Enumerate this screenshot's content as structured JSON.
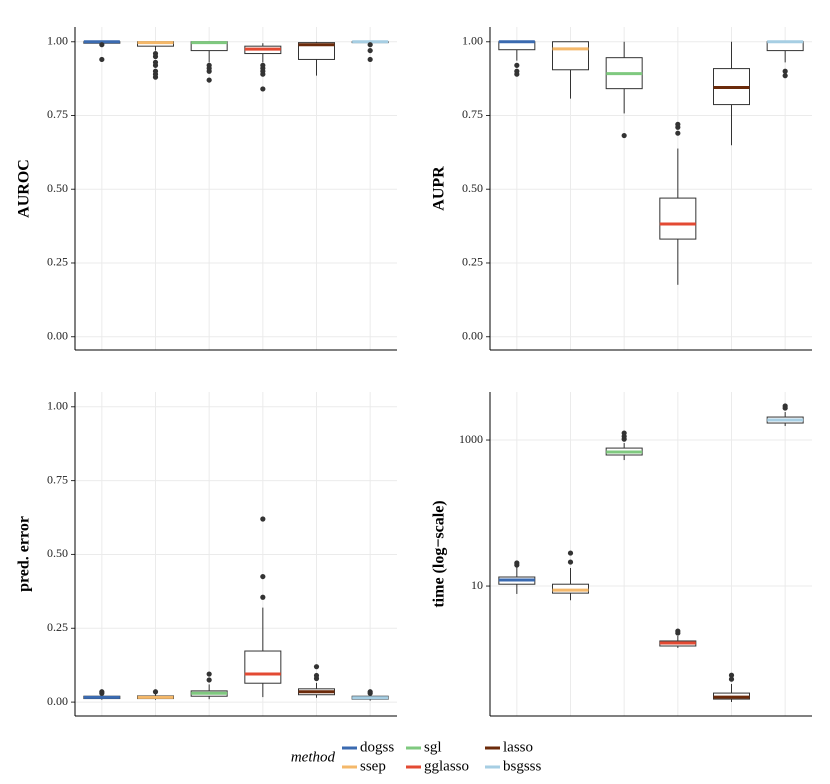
{
  "legend": {
    "title": "method",
    "items": [
      {
        "name": "dogss",
        "color": "#3a6ab0"
      },
      {
        "name": "ssep",
        "color": "#f4b86a"
      },
      {
        "name": "sgl",
        "color": "#7fc97f"
      },
      {
        "name": "gglasso",
        "color": "#e34a33"
      },
      {
        "name": "lasso",
        "color": "#6b2a0a"
      },
      {
        "name": "bsgsss",
        "color": "#a6cee3"
      }
    ]
  },
  "chart_data": [
    {
      "type": "box",
      "ylabel": "AUROC",
      "ylim": [
        -0.045,
        1.05
      ],
      "grid": true,
      "yticks": [
        {
          "value": 0,
          "label": "0.00"
        },
        {
          "value": 0.25,
          "label": "0.25"
        },
        {
          "value": 0.5,
          "label": "0.50"
        },
        {
          "value": 0.75,
          "label": "0.75"
        },
        {
          "value": 1,
          "label": "1.00"
        }
      ],
      "boxes": [
        {
          "whisker_low": 0.99,
          "q1": 0.995,
          "median": 1.0,
          "q3": 1.0,
          "whisker_high": 1.0,
          "outliers": [
            0.94,
            0.99
          ]
        },
        {
          "whisker_low": 0.97,
          "q1": 0.985,
          "median": 0.997,
          "q3": 1.0,
          "whisker_high": 1.0,
          "outliers": [
            0.88,
            0.89,
            0.9,
            0.92,
            0.93,
            0.95,
            0.96
          ]
        },
        {
          "whisker_low": 0.93,
          "q1": 0.97,
          "median": 0.997,
          "q3": 1.0,
          "whisker_high": 1.0,
          "outliers": [
            0.87,
            0.9,
            0.91,
            0.92
          ]
        },
        {
          "whisker_low": 0.93,
          "q1": 0.96,
          "median": 0.975,
          "q3": 0.985,
          "whisker_high": 0.995,
          "outliers": [
            0.84,
            0.89,
            0.9,
            0.91,
            0.92
          ]
        },
        {
          "whisker_low": 0.885,
          "q1": 0.94,
          "median": 0.99,
          "q3": 0.997,
          "whisker_high": 1.0,
          "outliers": []
        },
        {
          "whisker_low": 0.99,
          "q1": 0.997,
          "median": 1.0,
          "q3": 1.0,
          "whisker_high": 1.0,
          "outliers": [
            0.94,
            0.97,
            0.99
          ]
        }
      ]
    },
    {
      "type": "box",
      "ylabel": "AUPR",
      "ylim": [
        -0.045,
        1.05
      ],
      "grid": true,
      "yticks": [
        {
          "value": 0,
          "label": "0.00"
        },
        {
          "value": 0.25,
          "label": "0.25"
        },
        {
          "value": 0.5,
          "label": "0.50"
        },
        {
          "value": 0.75,
          "label": "0.75"
        },
        {
          "value": 1,
          "label": "1.00"
        }
      ],
      "boxes": [
        {
          "whisker_low": 0.936,
          "q1": 0.973,
          "median": 1.0,
          "q3": 1.0,
          "whisker_high": 1.0,
          "outliers": [
            0.92,
            0.9,
            0.89
          ]
        },
        {
          "whisker_low": 0.807,
          "q1": 0.905,
          "median": 0.976,
          "q3": 1.0,
          "whisker_high": 1.0,
          "outliers": []
        },
        {
          "whisker_low": 0.757,
          "q1": 0.841,
          "median": 0.892,
          "q3": 0.946,
          "whisker_high": 1.0,
          "outliers": [
            0.682
          ]
        },
        {
          "whisker_low": 0.176,
          "q1": 0.331,
          "median": 0.382,
          "q3": 0.47,
          "whisker_high": 0.638,
          "outliers": [
            0.69,
            0.71,
            0.72
          ]
        },
        {
          "whisker_low": 0.649,
          "q1": 0.787,
          "median": 0.845,
          "q3": 0.909,
          "whisker_high": 1.0,
          "outliers": []
        },
        {
          "whisker_low": 0.93,
          "q1": 0.97,
          "median": 1.0,
          "q3": 1.0,
          "whisker_high": 1.0,
          "outliers": [
            0.9,
            0.885
          ]
        }
      ]
    },
    {
      "type": "box",
      "ylabel": "pred. error",
      "ylim": [
        -0.047,
        1.05
      ],
      "grid": true,
      "yticks": [
        {
          "value": 0,
          "label": "0.00"
        },
        {
          "value": 0.25,
          "label": "0.25"
        },
        {
          "value": 0.5,
          "label": "0.50"
        },
        {
          "value": 0.75,
          "label": "0.75"
        },
        {
          "value": 1,
          "label": "1.00"
        }
      ],
      "boxes": [
        {
          "whisker_low": 0.008,
          "q1": 0.012,
          "median": 0.016,
          "q3": 0.02,
          "whisker_high": 0.026,
          "outliers": [
            0.03,
            0.035
          ]
        },
        {
          "whisker_low": 0.008,
          "q1": 0.012,
          "median": 0.016,
          "q3": 0.021,
          "whisker_high": 0.028,
          "outliers": [
            0.035
          ]
        },
        {
          "whisker_low": 0.01,
          "q1": 0.02,
          "median": 0.03,
          "q3": 0.038,
          "whisker_high": 0.06,
          "outliers": [
            0.075,
            0.095
          ]
        },
        {
          "whisker_low": 0.017,
          "q1": 0.064,
          "median": 0.095,
          "q3": 0.173,
          "whisker_high": 0.32,
          "outliers": [
            0.355,
            0.425,
            0.62
          ]
        },
        {
          "whisker_low": 0.015,
          "q1": 0.025,
          "median": 0.035,
          "q3": 0.045,
          "whisker_high": 0.065,
          "outliers": [
            0.08,
            0.09,
            0.12
          ]
        },
        {
          "whisker_low": 0.005,
          "q1": 0.01,
          "median": 0.015,
          "q3": 0.02,
          "whisker_high": 0.027,
          "outliers": [
            0.03,
            0.035
          ]
        }
      ]
    },
    {
      "type": "box",
      "ylabel": "time (log−scale)",
      "log": true,
      "ylim": [
        0.166,
        4550
      ],
      "grid": true,
      "yticks": [
        10,
        1000
      ],
      "boxes": [
        {
          "whisker_low": 7.8,
          "q1": 10.6,
          "median": 12.1,
          "q3": 13.3,
          "whisker_high": 18.8,
          "outliers": [
            20.7,
            19.4
          ]
        },
        {
          "whisker_low": 6.4,
          "q1": 8.0,
          "median": 8.8,
          "q3": 10.6,
          "whisker_high": 17.7,
          "outliers": [
            28.3,
            21.3
          ]
        },
        {
          "whisker_low": 532,
          "q1": 624,
          "median": 685,
          "q3": 776,
          "whisker_high": 910,
          "outliers": [
            1247,
            1122,
            1030
          ]
        },
        {
          "whisker_low": 1.42,
          "q1": 1.51,
          "median": 1.66,
          "q3": 1.77,
          "whisker_high": 2.07,
          "outliers": [
            2.42,
            2.27
          ]
        },
        {
          "whisker_low": 0.258,
          "q1": 0.283,
          "median": 0.301,
          "q3": 0.342,
          "whisker_high": 0.455,
          "outliers": [
            0.6,
            0.53
          ]
        },
        {
          "whisker_low": 1556,
          "q1": 1710,
          "median": 1880,
          "q3": 2065,
          "whisker_high": 2420,
          "outliers": [
            2925,
            2740
          ]
        }
      ]
    }
  ]
}
